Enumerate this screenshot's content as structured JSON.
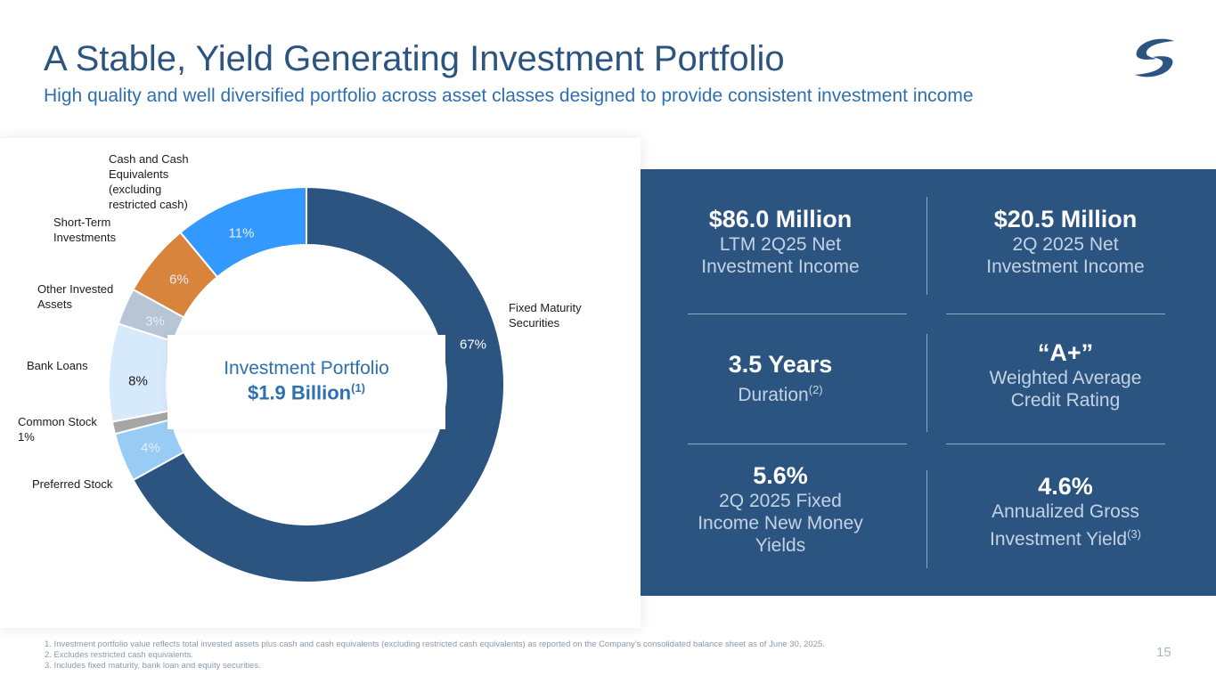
{
  "header": {
    "title": "A Stable, Yield Generating Investment Portfolio",
    "subtitle": "High quality and well diversified portfolio across asset classes designed to provide consistent investment income"
  },
  "logo": {
    "icon": "company-logo-icon",
    "color": "#2b5580"
  },
  "chart_data": {
    "type": "pie",
    "variant": "donut",
    "title": "Investment Portfolio",
    "total_label": "$1.9 Billion",
    "total_note": "(1)",
    "slices": [
      {
        "name": "Fixed Maturity Securities",
        "value": 67,
        "label": "67%",
        "color": "#2b5580"
      },
      {
        "name": "Preferred Stock",
        "value": 4,
        "label": "4%",
        "color": "#99ccf5"
      },
      {
        "name": "Common Stock",
        "value": 1,
        "label": "1%",
        "color": "#a6a6a6"
      },
      {
        "name": "Bank Loans",
        "value": 8,
        "label": "8%",
        "color": "#d7eafb"
      },
      {
        "name": "Other Invested Assets",
        "value": 3,
        "label": "3%",
        "color": "#b8c5d6"
      },
      {
        "name": "Short-Term Investments",
        "value": 6,
        "label": "6%",
        "color": "#d9843d"
      },
      {
        "name": "Cash and Cash Equivalents (excluding restricted cash)",
        "value": 11,
        "label": "11%",
        "color": "#3399ff"
      }
    ],
    "category_labels": {
      "fixed": [
        "Fixed Maturity",
        "Securities"
      ],
      "preferred": [
        "Preferred Stock"
      ],
      "common": [
        "Common Stock",
        "1%"
      ],
      "bank": [
        "Bank Loans"
      ],
      "other": [
        "Other Invested",
        "Assets"
      ],
      "short": [
        "Short-Term",
        "Investments"
      ],
      "cash": [
        "Cash and Cash",
        "Equivalents",
        "(excluding",
        "restricted cash)"
      ]
    }
  },
  "stats": [
    {
      "value": "$86.0 Million",
      "desc": [
        "LTM 2Q25 Net",
        "Investment Income"
      ],
      "note": ""
    },
    {
      "value": "$20.5 Million",
      "desc": [
        "2Q 2025 Net",
        "Investment Income"
      ],
      "note": ""
    },
    {
      "value": "3.5 Years",
      "desc": [
        "Duration"
      ],
      "note": "(2)"
    },
    {
      "value": "“A+”",
      "desc": [
        "Weighted Average",
        "Credit Rating"
      ],
      "note": ""
    },
    {
      "value": "5.6%",
      "desc": [
        "2Q 2025 Fixed",
        "Income New Money",
        "Yields"
      ],
      "note": ""
    },
    {
      "value": "4.6%",
      "desc": [
        "Annualized Gross",
        "Investment Yield"
      ],
      "note": "(3)"
    }
  ],
  "footnotes": [
    "1.  Investment portfolio value reflects total invested assets plus cash and cash equivalents (excluding restricted cash equivalents) as reported on the Company’s consolidated balance sheet as of June 30, 2025.",
    "2.  Excludes restricted cash equivalents.",
    "3.  Includes fixed maturity, bank loan and equity securities."
  ],
  "page_number": "15"
}
